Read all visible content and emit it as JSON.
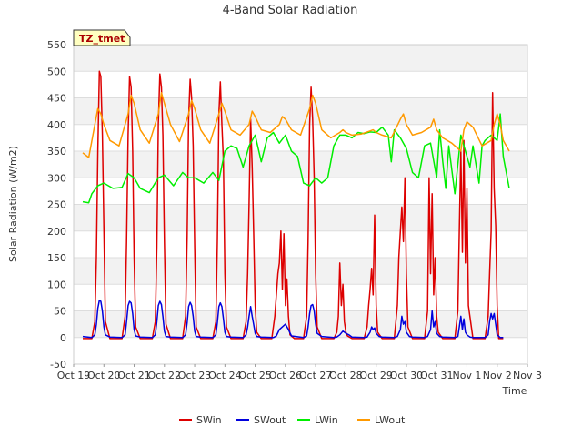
{
  "chart_data": {
    "type": "line",
    "title": "4-Band Solar Radiation",
    "xlabel": "Time",
    "ylabel": "Solar Radiation (W/m2)",
    "ylim": [
      -50,
      550
    ],
    "yticks": [
      -50,
      0,
      50,
      100,
      150,
      200,
      250,
      300,
      350,
      400,
      450,
      500,
      550
    ],
    "xlim": [
      0,
      15
    ],
    "xtick_labels": [
      "Oct 19",
      "Oct 20",
      "Oct 21",
      "Oct 22",
      "Oct 23",
      "Oct 24",
      "Oct 25",
      "Oct 26",
      "Oct 27",
      "Oct 28",
      "Oct 29",
      "Oct 30",
      "Oct 31",
      "Nov 1",
      "Nov 2",
      "Nov 3"
    ],
    "badge": "TZ_tmet",
    "legend_position": "bottom-center",
    "grid": true,
    "series": [
      {
        "name": "SWin",
        "color": "#dd0000",
        "x_unit": "days since Oct 19",
        "x": [
          0.3,
          0.6,
          0.7,
          0.75,
          0.8,
          0.85,
          0.9,
          0.95,
          1.0,
          1.05,
          1.2,
          1.6,
          1.7,
          1.75,
          1.8,
          1.85,
          1.9,
          1.95,
          2.0,
          2.05,
          2.2,
          2.6,
          2.7,
          2.75,
          2.8,
          2.85,
          2.9,
          2.95,
          3.0,
          3.05,
          3.2,
          3.6,
          3.7,
          3.75,
          3.8,
          3.85,
          3.9,
          3.95,
          4.0,
          4.05,
          4.2,
          4.6,
          4.7,
          4.75,
          4.8,
          4.85,
          4.9,
          4.95,
          5.0,
          5.05,
          5.2,
          5.6,
          5.7,
          5.75,
          5.8,
          5.85,
          5.9,
          5.95,
          6.0,
          6.05,
          6.2,
          6.55,
          6.65,
          6.75,
          6.8,
          6.85,
          6.9,
          6.95,
          7.0,
          7.05,
          7.1,
          7.15,
          7.3,
          7.6,
          7.7,
          7.75,
          7.8,
          7.85,
          7.9,
          7.95,
          8.0,
          8.05,
          8.2,
          8.6,
          8.7,
          8.75,
          8.8,
          8.85,
          8.9,
          8.95,
          9.0,
          9.05,
          9.2,
          9.6,
          9.7,
          9.75,
          9.8,
          9.85,
          9.9,
          9.95,
          10.0,
          10.05,
          10.2,
          10.6,
          10.7,
          10.75,
          10.8,
          10.85,
          10.9,
          10.95,
          11.0,
          11.05,
          11.2,
          11.6,
          11.7,
          11.75,
          11.8,
          11.85,
          11.9,
          11.95,
          12.0,
          12.05,
          12.2,
          12.6,
          12.7,
          12.75,
          12.8,
          12.85,
          12.9,
          12.95,
          13.0,
          13.05,
          13.2,
          13.6,
          13.7,
          13.75,
          13.8,
          13.85,
          13.9,
          13.95,
          14.0,
          14.05,
          14.2
        ],
        "y": [
          -2,
          -2,
          30,
          150,
          350,
          500,
          490,
          380,
          200,
          30,
          -2,
          -2,
          40,
          180,
          380,
          490,
          470,
          350,
          150,
          20,
          -2,
          -2,
          30,
          170,
          400,
          495,
          470,
          380,
          180,
          25,
          -2,
          -2,
          40,
          190,
          410,
          485,
          450,
          360,
          170,
          20,
          -2,
          -2,
          30,
          180,
          420,
          480,
          400,
          330,
          120,
          20,
          -2,
          -2,
          30,
          120,
          250,
          410,
          320,
          200,
          60,
          10,
          -2,
          -2,
          40,
          120,
          140,
          200,
          90,
          195,
          60,
          110,
          40,
          5,
          -2,
          -2,
          40,
          180,
          400,
          470,
          410,
          300,
          120,
          20,
          -2,
          -2,
          10,
          40,
          140,
          60,
          100,
          30,
          10,
          3,
          -2,
          -2,
          20,
          60,
          90,
          130,
          80,
          230,
          60,
          10,
          -2,
          -2,
          60,
          150,
          200,
          245,
          180,
          300,
          120,
          20,
          -2,
          -2,
          50,
          300,
          120,
          270,
          80,
          150,
          40,
          10,
          -2,
          -2,
          50,
          200,
          350,
          160,
          370,
          140,
          280,
          60,
          -2,
          -2,
          40,
          120,
          200,
          460,
          280,
          210,
          60,
          -2,
          -2
        ]
      },
      {
        "name": "SWout",
        "color": "#0000dd",
        "x_unit": "days since Oct 19",
        "x": [
          0.3,
          0.6,
          0.7,
          0.75,
          0.8,
          0.85,
          0.9,
          0.95,
          1.0,
          1.05,
          1.2,
          1.6,
          1.7,
          1.75,
          1.8,
          1.85,
          1.9,
          1.95,
          2.0,
          2.05,
          2.2,
          2.6,
          2.7,
          2.75,
          2.8,
          2.85,
          2.9,
          2.95,
          3.0,
          3.05,
          3.2,
          3.6,
          3.7,
          3.75,
          3.8,
          3.85,
          3.9,
          3.95,
          4.0,
          4.05,
          4.2,
          4.6,
          4.7,
          4.75,
          4.8,
          4.85,
          4.9,
          4.95,
          5.0,
          5.05,
          5.2,
          5.6,
          5.7,
          5.75,
          5.8,
          5.85,
          5.9,
          5.95,
          6.0,
          6.05,
          6.2,
          6.6,
          6.7,
          6.8,
          6.9,
          7.0,
          7.1,
          7.2,
          7.6,
          7.7,
          7.75,
          7.8,
          7.85,
          7.9,
          7.95,
          8.0,
          8.05,
          8.2,
          8.6,
          8.7,
          8.8,
          8.9,
          9.0,
          9.1,
          9.2,
          9.6,
          9.7,
          9.8,
          9.85,
          9.9,
          9.95,
          10.0,
          10.1,
          10.2,
          10.6,
          10.7,
          10.8,
          10.85,
          10.9,
          10.95,
          11.0,
          11.1,
          11.2,
          11.6,
          11.7,
          11.8,
          11.85,
          11.9,
          11.95,
          12.0,
          12.1,
          12.2,
          12.6,
          12.7,
          12.75,
          12.8,
          12.85,
          12.9,
          12.95,
          13.0,
          13.1,
          13.2,
          13.6,
          13.7,
          13.75,
          13.8,
          13.85,
          13.9,
          13.95,
          14.0,
          14.1,
          14.2
        ],
        "y": [
          2,
          0,
          5,
          25,
          55,
          70,
          68,
          50,
          20,
          5,
          1,
          0,
          5,
          30,
          60,
          68,
          65,
          45,
          15,
          3,
          1,
          0,
          5,
          30,
          60,
          68,
          62,
          40,
          12,
          2,
          1,
          0,
          5,
          28,
          58,
          66,
          60,
          40,
          12,
          2,
          1,
          0,
          5,
          28,
          58,
          65,
          58,
          35,
          10,
          2,
          1,
          0,
          5,
          20,
          40,
          58,
          40,
          25,
          8,
          2,
          1,
          0,
          3,
          15,
          20,
          25,
          15,
          3,
          0,
          3,
          20,
          45,
          60,
          62,
          50,
          25,
          8,
          2,
          0,
          1,
          5,
          12,
          8,
          5,
          1,
          0,
          1,
          10,
          20,
          15,
          18,
          8,
          2,
          1,
          0,
          2,
          15,
          40,
          25,
          30,
          10,
          2,
          1,
          0,
          2,
          15,
          50,
          20,
          30,
          8,
          2,
          1,
          0,
          2,
          20,
          40,
          15,
          35,
          10,
          5,
          1,
          0,
          0,
          5,
          30,
          45,
          35,
          45,
          25,
          5,
          0,
          0
        ]
      },
      {
        "name": "LWin",
        "color": "#00ee00",
        "x_unit": "days since Oct 19",
        "x": [
          0.3,
          0.5,
          0.6,
          0.8,
          1.0,
          1.3,
          1.6,
          1.8,
          2.0,
          2.2,
          2.5,
          2.8,
          3.0,
          3.3,
          3.6,
          3.8,
          4.0,
          4.3,
          4.6,
          4.8,
          5.0,
          5.2,
          5.4,
          5.6,
          5.8,
          6.0,
          6.2,
          6.4,
          6.6,
          6.8,
          7.0,
          7.2,
          7.4,
          7.6,
          7.8,
          8.0,
          8.2,
          8.4,
          8.6,
          8.8,
          9.0,
          9.2,
          9.4,
          9.6,
          9.8,
          10.0,
          10.2,
          10.4,
          10.5,
          10.6,
          10.8,
          11.0,
          11.2,
          11.4,
          11.6,
          11.8,
          12.0,
          12.1,
          12.2,
          12.3,
          12.4,
          12.6,
          12.8,
          13.0,
          13.1,
          13.2,
          13.4,
          13.5,
          13.6,
          13.8,
          14.0,
          14.1,
          14.2,
          14.4
        ],
        "y": [
          255,
          253,
          270,
          285,
          290,
          280,
          282,
          308,
          300,
          280,
          272,
          300,
          305,
          285,
          310,
          300,
          300,
          290,
          310,
          295,
          350,
          360,
          355,
          320,
          360,
          380,
          330,
          375,
          385,
          365,
          380,
          350,
          340,
          290,
          285,
          300,
          290,
          300,
          360,
          380,
          380,
          375,
          385,
          383,
          386,
          385,
          395,
          380,
          330,
          390,
          375,
          355,
          310,
          300,
          360,
          365,
          300,
          390,
          330,
          280,
          360,
          270,
          380,
          340,
          320,
          360,
          290,
          360,
          370,
          380,
          370,
          420,
          340,
          280
        ]
      },
      {
        "name": "LWout",
        "color": "#ff9900",
        "x_unit": "days since Oct 19",
        "x": [
          0.3,
          0.5,
          0.7,
          0.8,
          0.9,
          1.0,
          1.2,
          1.5,
          1.8,
          1.9,
          2.0,
          2.2,
          2.5,
          2.8,
          2.9,
          3.0,
          3.2,
          3.5,
          3.8,
          3.9,
          4.0,
          4.2,
          4.5,
          4.8,
          4.9,
          5.0,
          5.2,
          5.5,
          5.8,
          5.9,
          6.0,
          6.2,
          6.5,
          6.8,
          6.9,
          7.0,
          7.2,
          7.5,
          7.8,
          7.9,
          8.0,
          8.2,
          8.5,
          8.8,
          8.9,
          9.0,
          9.2,
          9.5,
          9.8,
          9.9,
          10.0,
          10.2,
          10.5,
          10.8,
          10.9,
          11.0,
          11.2,
          11.5,
          11.8,
          11.9,
          12.0,
          12.2,
          12.5,
          12.8,
          12.9,
          13.0,
          13.2,
          13.5,
          13.8,
          13.9,
          14.0,
          14.1,
          14.2,
          14.4
        ],
        "y": [
          347,
          338,
          400,
          430,
          420,
          400,
          370,
          360,
          420,
          455,
          440,
          390,
          365,
          420,
          460,
          440,
          400,
          368,
          420,
          445,
          430,
          390,
          365,
          420,
          440,
          425,
          390,
          380,
          400,
          425,
          415,
          390,
          385,
          400,
          415,
          410,
          390,
          380,
          430,
          455,
          440,
          390,
          375,
          385,
          390,
          385,
          380,
          382,
          388,
          390,
          385,
          380,
          375,
          410,
          420,
          400,
          380,
          385,
          395,
          410,
          390,
          375,
          365,
          350,
          390,
          405,
          395,
          360,
          370,
          400,
          420,
          400,
          370,
          350
        ]
      }
    ]
  }
}
